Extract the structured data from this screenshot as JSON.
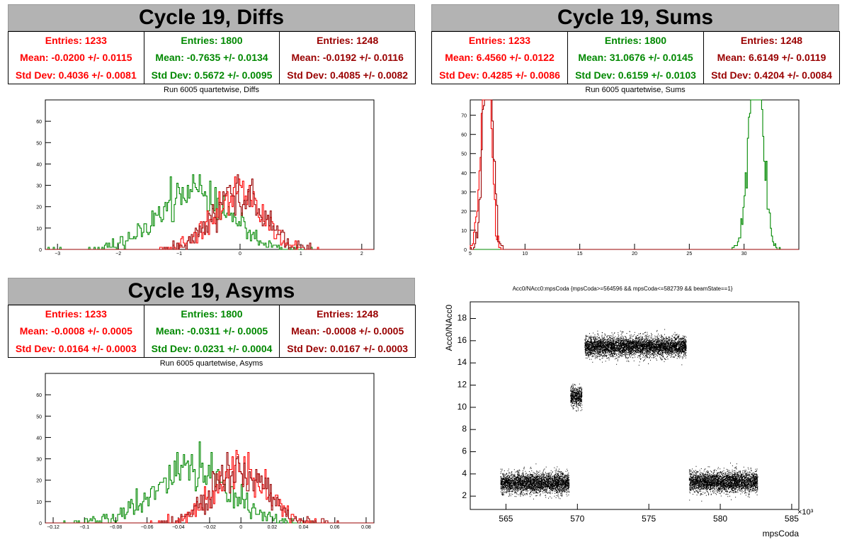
{
  "colors": {
    "red": "#ff0000",
    "green": "#008800",
    "darkred": "#990000",
    "title_bg": "#b3b3b3"
  },
  "panels": [
    {
      "title": "Cycle 19, Diffs",
      "stats": [
        {
          "entries": "Entries: 1233",
          "mean": "Mean: -0.0200 +/- 0.0115",
          "std": "Std Dev: 0.4036 +/- 0.0081",
          "color": "#ff0000"
        },
        {
          "entries": "Entries: 1800",
          "mean": "Mean: -0.7635 +/- 0.0134",
          "std": "Std Dev: 0.5672 +/- 0.0095",
          "color": "#008800"
        },
        {
          "entries": "Entries: 1248",
          "mean": "Mean: -0.0192 +/- 0.0116",
          "std": "Std Dev: 0.4085 +/- 0.0082",
          "color": "#990000"
        }
      ],
      "subtitle": "Run 6005 quartetwise, Diffs"
    },
    {
      "title": "Cycle 19, Sums",
      "stats": [
        {
          "entries": "Entries: 1233",
          "mean": "Mean: 6.4560 +/- 0.0122",
          "std": "Std Dev: 0.4285 +/- 0.0086",
          "color": "#ff0000"
        },
        {
          "entries": "Entries: 1800",
          "mean": "Mean: 31.0676 +/- 0.0145",
          "std": "Std Dev: 0.6159 +/- 0.0103",
          "color": "#008800"
        },
        {
          "entries": "Entries: 1248",
          "mean": "Mean: 6.6149 +/- 0.0119",
          "std": "Std Dev: 0.4204 +/- 0.0084",
          "color": "#990000"
        }
      ],
      "subtitle": "Run 6005 quartetwise, Sums"
    },
    {
      "title": "Cycle 19, Asyms",
      "stats": [
        {
          "entries": "Entries: 1233",
          "mean": "Mean: -0.0008 +/- 0.0005",
          "std": "Std Dev: 0.0164 +/- 0.0003",
          "color": "#ff0000"
        },
        {
          "entries": "Entries: 1800",
          "mean": "Mean: -0.0311 +/- 0.0005",
          "std": "Std Dev: 0.0231 +/- 0.0004",
          "color": "#008800"
        },
        {
          "entries": "Entries: 1248",
          "mean": "Mean: -0.0008 +/- 0.0005",
          "std": "Std Dev: 0.0167 +/- 0.0003",
          "color": "#990000"
        }
      ],
      "subtitle": "Run 6005 quartetwise, Asyms"
    }
  ],
  "chart_data": [
    {
      "type": "histogram",
      "title": "Run 6005 quartetwise, Diffs",
      "xlim": [
        -3.2,
        2.2
      ],
      "ylim": [
        0,
        70
      ],
      "xticks": [
        -3,
        -2,
        -1,
        0,
        1,
        2
      ],
      "yticks": [
        0,
        10,
        20,
        30,
        40,
        50,
        60
      ],
      "series": [
        {
          "name": "",
          "color": "#008800",
          "n": 1800,
          "mean": -0.7635,
          "std": 0.5672
        },
        {
          "name": "",
          "color": "#ff0000",
          "n": 1233,
          "mean": -0.02,
          "std": 0.4036
        },
        {
          "name": "",
          "color": "#990000",
          "n": 1248,
          "mean": -0.0192,
          "std": 0.4085
        }
      ]
    },
    {
      "type": "histogram",
      "title": "Run 6005 quartetwise, Sums",
      "xlim": [
        5,
        35
      ],
      "ylim": [
        0,
        78
      ],
      "xticks": [
        5,
        10,
        15,
        20,
        25,
        30
      ],
      "yticks": [
        0,
        10,
        20,
        30,
        40,
        50,
        60,
        70
      ],
      "series": [
        {
          "name": "",
          "color": "#008800",
          "n": 1800,
          "mean": 31.0676,
          "std": 0.6159
        },
        {
          "name": "",
          "color": "#ff0000",
          "n": 1233,
          "mean": 6.456,
          "std": 0.4285
        },
        {
          "name": "",
          "color": "#990000",
          "n": 1248,
          "mean": 6.6149,
          "std": 0.4204
        }
      ]
    },
    {
      "type": "histogram",
      "title": "Run 6005 quartetwise, Asyms",
      "xlim": [
        -0.125,
        0.085
      ],
      "ylim": [
        0,
        70
      ],
      "xticks": [
        -0.12,
        -0.1,
        -0.08,
        -0.06,
        -0.04,
        -0.02,
        0,
        0.02,
        0.04,
        0.06,
        0.08
      ],
      "yticks": [
        0,
        10,
        20,
        30,
        40,
        50,
        60
      ],
      "series": [
        {
          "name": "",
          "color": "#008800",
          "n": 1800,
          "mean": -0.0311,
          "std": 0.0231
        },
        {
          "name": "",
          "color": "#ff0000",
          "n": 1233,
          "mean": -0.0008,
          "std": 0.0164
        },
        {
          "name": "",
          "color": "#990000",
          "n": 1248,
          "mean": -0.0008,
          "std": 0.0167
        }
      ]
    },
    {
      "type": "scatter",
      "title": "Acc0/NAcc0:mpsCoda {mpsCoda>=564596 && mpsCoda<=582739 && beamState==1}",
      "xlabel": "mpsCoda",
      "ylabel": "Acc0/NAcc0",
      "x_exponent": "×10³",
      "xlim": [
        562.5,
        585.5
      ],
      "ylim": [
        0.8,
        19.5
      ],
      "xticks": [
        565,
        570,
        575,
        580,
        585
      ],
      "yticks": [
        2,
        4,
        6,
        8,
        10,
        12,
        14,
        16,
        18
      ],
      "clusters": [
        {
          "x": [
            564.6,
            569.4
          ],
          "y": 3.2
        },
        {
          "x": [
            569.5,
            570.3
          ],
          "y": 11.0
        },
        {
          "x": [
            570.5,
            577.6
          ],
          "y": 15.5
        },
        {
          "x": [
            577.8,
            582.6
          ],
          "y": 3.3
        }
      ]
    }
  ]
}
